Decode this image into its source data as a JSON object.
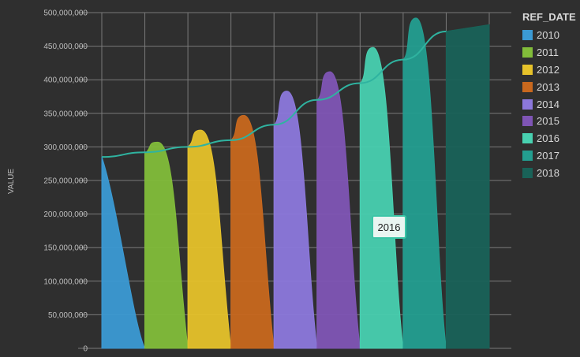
{
  "chart_data": {
    "type": "area",
    "ylabel": "VALUE",
    "ylim": [
      0,
      500000000
    ],
    "yticks": [
      "0",
      "50,000,000",
      "100,000,000",
      "150,000,000",
      "200,000,000",
      "250,000,000",
      "300,000,000",
      "350,000,000",
      "400,000,000",
      "450,000,000",
      "500,000,000"
    ],
    "grid": true,
    "legend_position": "right",
    "legend_title": "REF_DATE",
    "series": [
      {
        "name": "2010",
        "color": "#3b9ad4",
        "start": 285000000,
        "peak": 285000000
      },
      {
        "name": "2011",
        "color": "#82bd3a",
        "start": 290000000,
        "peak": 307000000
      },
      {
        "name": "2012",
        "color": "#e6c22a",
        "start": 300000000,
        "peak": 325000000
      },
      {
        "name": "2013",
        "color": "#c8681e",
        "start": 310000000,
        "peak": 347000000
      },
      {
        "name": "2014",
        "color": "#8c78dc",
        "start": 333000000,
        "peak": 383000000
      },
      {
        "name": "2015",
        "color": "#7f55b5",
        "start": 370000000,
        "peak": 412000000
      },
      {
        "name": "2016",
        "color": "#48d0b0",
        "start": 395000000,
        "peak": 448000000
      },
      {
        "name": "2017",
        "color": "#239e90",
        "start": 430000000,
        "peak": 492000000
      },
      {
        "name": "2018",
        "color": "#196258",
        "start": 472000000,
        "peak": 482000000
      }
    ],
    "trend_line": [
      285000000,
      292000000,
      300000000,
      310000000,
      333000000,
      370000000,
      395000000,
      430000000,
      472000000
    ],
    "tooltip": "2016"
  }
}
